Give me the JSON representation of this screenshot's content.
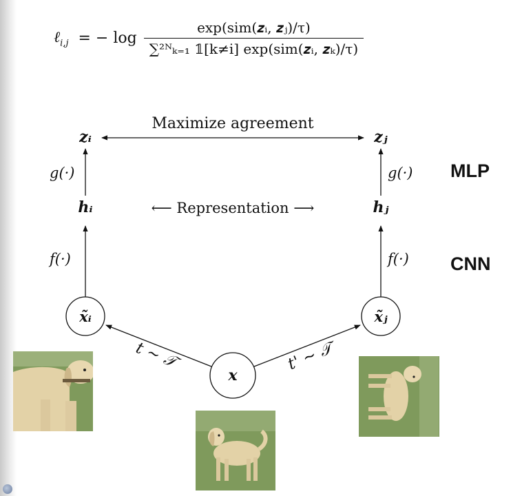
{
  "formula": {
    "lhs": "ℓ",
    "lhs_sub": "i,j",
    "equals_log": "= − log",
    "numerator": "exp(sim(𝒛ᵢ, 𝒛ⱼ)/τ)",
    "denominator": "∑²ᴺₖ₌₁ 𝟙[k≠i] exp(sim(𝒛ᵢ, 𝒛ₖ)/τ)"
  },
  "labels": {
    "maximize": "Maximize agreement",
    "representation": "⟵ Representation ⟶",
    "zi": "𝒛ᵢ",
    "zj": "𝒛ⱼ",
    "hi": "𝒉ᵢ",
    "hj": "𝒉ⱼ",
    "g_left": "g(·)",
    "g_right": "g(·)",
    "f_left": "f(·)",
    "f_right": "f(·)",
    "xi": "𝒙̃ᵢ",
    "xj": "𝒙̃ⱼ",
    "x": "𝒙",
    "t_left": "t ∼ 𝒯",
    "t_right": "t' ∼ 𝒯"
  },
  "side_labels": {
    "mlp": "MLP",
    "cnn": "CNN"
  },
  "images": {
    "left": "dog-crop-image",
    "center": "dog-original-image",
    "right": "dog-rotated-image"
  },
  "colors": {
    "ink": "#111111",
    "grass": "#7f9a5c",
    "dog": "#e3d2a7"
  }
}
